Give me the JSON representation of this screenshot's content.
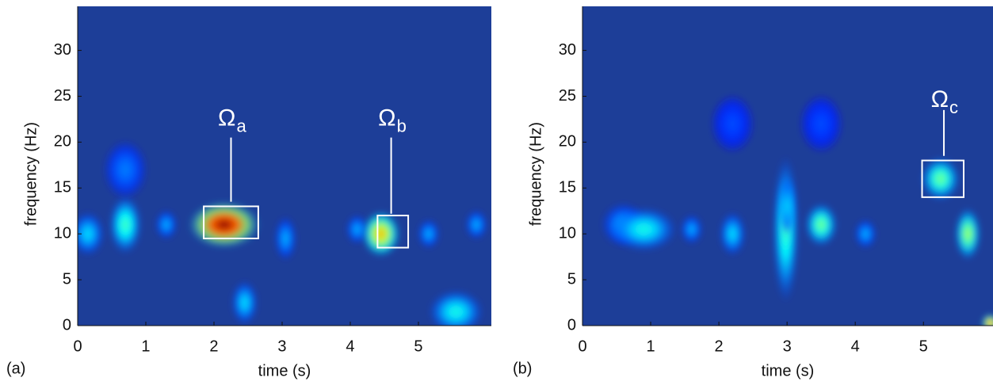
{
  "chart_data": [
    {
      "type": "spectrogram",
      "panel_label": "(a)",
      "xlabel": "time (s)",
      "ylabel": "frequency (Hz)",
      "xlim": [
        0,
        6.07
      ],
      "ylim": [
        0,
        34.8
      ],
      "xticks": [
        0,
        1,
        2,
        3,
        4,
        5
      ],
      "yticks": [
        0,
        5,
        10,
        15,
        20,
        25,
        30
      ],
      "background": "#1d3e98",
      "peaks": [
        {
          "t": 0.15,
          "f": 10,
          "level": 0.35,
          "dt": 0.15,
          "df": 1.5
        },
        {
          "t": 0.7,
          "f": 11,
          "level": 0.45,
          "dt": 0.15,
          "df": 2
        },
        {
          "t": 1.3,
          "f": 11,
          "level": 0.3,
          "dt": 0.1,
          "df": 1
        },
        {
          "t": 2.15,
          "f": 11,
          "level": 1.0,
          "dt": 0.33,
          "df": 1.6
        },
        {
          "t": 3.05,
          "f": 9.5,
          "level": 0.3,
          "dt": 0.1,
          "df": 1.5
        },
        {
          "t": 4.1,
          "f": 10.5,
          "level": 0.3,
          "dt": 0.1,
          "df": 1
        },
        {
          "t": 4.45,
          "f": 10,
          "level": 0.7,
          "dt": 0.18,
          "df": 1.6
        },
        {
          "t": 5.15,
          "f": 10,
          "level": 0.3,
          "dt": 0.1,
          "df": 1
        },
        {
          "t": 5.85,
          "f": 11,
          "level": 0.3,
          "dt": 0.1,
          "df": 1
        },
        {
          "t": 2.45,
          "f": 2.5,
          "level": 0.35,
          "dt": 0.12,
          "df": 1.5
        },
        {
          "t": 5.55,
          "f": 1.5,
          "level": 0.4,
          "dt": 0.25,
          "df": 1.5
        },
        {
          "t": 0.7,
          "f": 17,
          "level": 0.25,
          "dt": 0.2,
          "df": 2
        }
      ],
      "annotations": [
        {
          "text": "Ω",
          "sub": "a",
          "box": [
            1.85,
            2.65,
            9.5,
            13
          ],
          "label_t": 2.25,
          "label_f": 22.5,
          "line": [
            20.5,
            13.5
          ]
        },
        {
          "text": "Ω",
          "sub": "b",
          "box": [
            4.4,
            4.85,
            8.5,
            12
          ],
          "label_t": 4.6,
          "label_f": 22.5,
          "line": [
            20.5,
            12.2
          ]
        }
      ]
    },
    {
      "type": "spectrogram",
      "panel_label": "(b)",
      "xlabel": "time (s)",
      "ylabel": "frequency (Hz)",
      "xlim": [
        0,
        6.02
      ],
      "ylim": [
        0,
        34.8
      ],
      "xticks": [
        0,
        1,
        2,
        3,
        4,
        5
      ],
      "yticks": [
        0,
        5,
        10,
        15,
        20,
        25,
        30
      ],
      "background": "#1d3e98",
      "peaks": [
        {
          "t": 0.6,
          "f": 11,
          "level": 0.3,
          "dt": 0.2,
          "df": 1.5
        },
        {
          "t": 0.9,
          "f": 10.5,
          "level": 0.4,
          "dt": 0.3,
          "df": 1.5
        },
        {
          "t": 1.6,
          "f": 10.5,
          "level": 0.3,
          "dt": 0.1,
          "df": 1
        },
        {
          "t": 2.2,
          "f": 10,
          "level": 0.35,
          "dt": 0.12,
          "df": 1.5
        },
        {
          "t": 2.98,
          "f": 10.5,
          "level": 0.45,
          "dt": 0.12,
          "df": 5
        },
        {
          "t": 3.0,
          "f": 13,
          "level": 0.35,
          "dt": 0.08,
          "df": 2
        },
        {
          "t": 3.5,
          "f": 11,
          "level": 0.5,
          "dt": 0.15,
          "df": 1.5
        },
        {
          "t": 4.15,
          "f": 10,
          "level": 0.3,
          "dt": 0.1,
          "df": 1
        },
        {
          "t": 5.25,
          "f": 16,
          "level": 0.5,
          "dt": 0.18,
          "df": 1.5
        },
        {
          "t": 5.65,
          "f": 10,
          "level": 0.55,
          "dt": 0.12,
          "df": 1.8
        },
        {
          "t": 5.98,
          "f": 0.3,
          "level": 0.8,
          "dt": 0.08,
          "df": 0.6
        },
        {
          "t": 2.2,
          "f": 22,
          "level": 0.2,
          "dt": 0.2,
          "df": 2
        },
        {
          "t": 3.5,
          "f": 22,
          "level": 0.2,
          "dt": 0.2,
          "df": 2
        }
      ],
      "annotations": [
        {
          "text": "Ω",
          "sub": "c",
          "box": [
            4.98,
            5.59,
            14,
            18
          ],
          "label_t": 5.3,
          "label_f": 24.5,
          "line": [
            23.5,
            18.5
          ]
        }
      ]
    }
  ]
}
